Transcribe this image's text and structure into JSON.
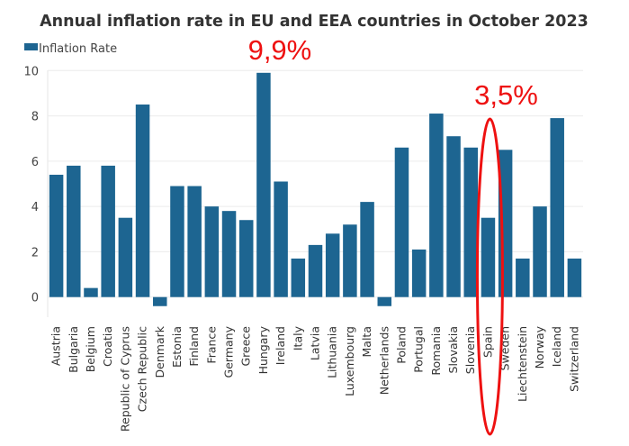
{
  "chart_data": {
    "type": "bar",
    "title": "Annual inflation rate in EU and EEA countries in October 2023",
    "xlabel": "",
    "ylabel": "",
    "ylim": [
      -1,
      10
    ],
    "yticks": [
      0,
      2,
      4,
      6,
      8,
      10
    ],
    "grid": true,
    "legend_position": "top-left",
    "categories": [
      "Austria",
      "Bulgaria",
      "Belgium",
      "Croatia",
      "Republic of Cyprus",
      "Czech Republic",
      "Denmark",
      "Estonia",
      "Finland",
      "France",
      "Germany",
      "Greece",
      "Hungary",
      "Ireland",
      "Italy",
      "Latvia",
      "Lithuania",
      "Luxembourg",
      "Malta",
      "Netherlands",
      "Poland",
      "Portugal",
      "Romania",
      "Slovakia",
      "Slovenia",
      "Spain",
      "Sweden",
      "Liechtenstein",
      "Norway",
      "Iceland",
      "Switzerland"
    ],
    "series": [
      {
        "name": "Inflation Rate",
        "color": "#1d6591",
        "values": [
          5.4,
          5.8,
          0.4,
          5.8,
          3.5,
          8.5,
          -0.4,
          4.9,
          4.9,
          4.0,
          3.8,
          3.4,
          9.9,
          5.1,
          1.7,
          2.3,
          2.8,
          3.2,
          4.2,
          -0.4,
          6.6,
          2.1,
          8.1,
          7.1,
          6.6,
          3.5,
          6.5,
          1.7,
          4.0,
          7.9,
          1.7
        ]
      }
    ],
    "annotations": [
      {
        "text": "9,9%",
        "category": "Hungary",
        "color": "#ee1111"
      },
      {
        "text": "3,5%",
        "category": "Spain",
        "color": "#ee1111",
        "highlight": "ellipse"
      }
    ]
  }
}
